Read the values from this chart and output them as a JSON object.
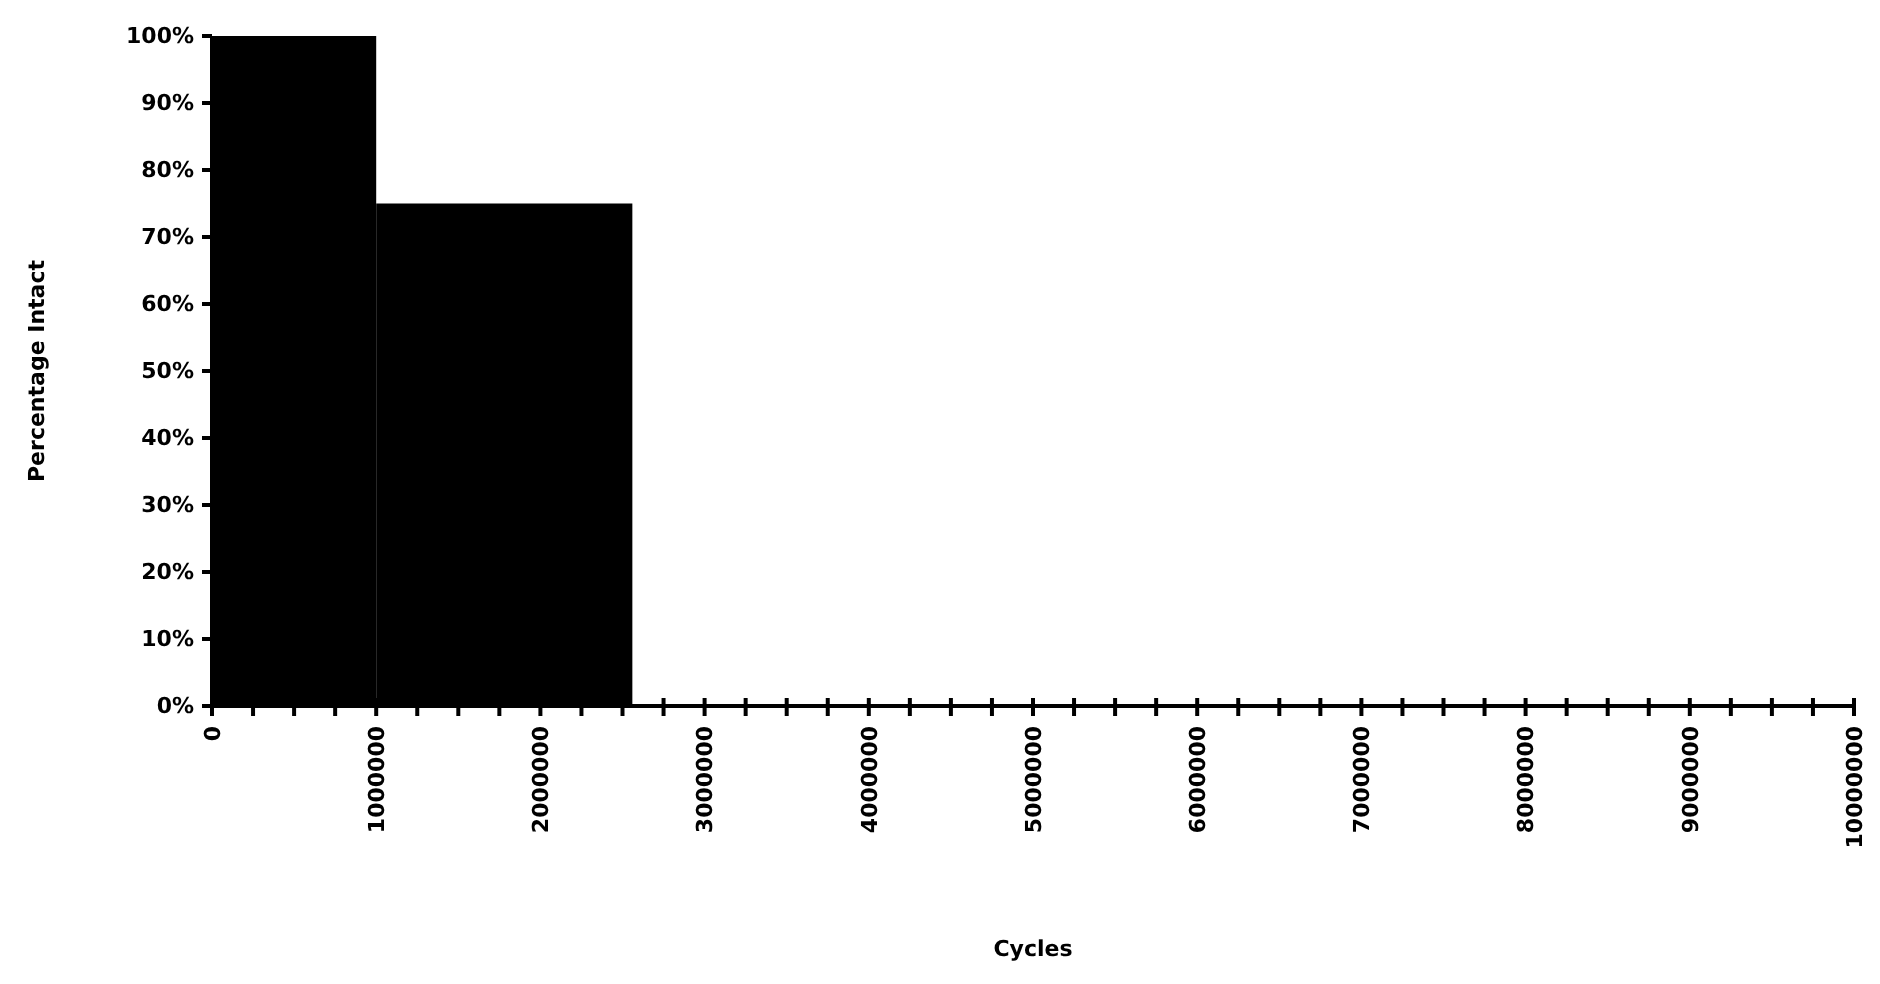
{
  "chart_data": {
    "type": "histogram",
    "xlabel": "Cycles",
    "ylabel": "Percentage Intact",
    "bins": [
      0,
      1000000,
      2560000
    ],
    "values": [
      100,
      75
    ],
    "color": "#000000",
    "xlim": [
      0,
      10000000
    ],
    "ylim": [
      0,
      100
    ],
    "xticks": [
      0,
      {
        "value": 250000,
        "label": null
      },
      {
        "value": 500000,
        "label": null
      },
      {
        "value": 750000,
        "label": null
      },
      1000000,
      {
        "value": 1250000,
        "label": null
      },
      {
        "value": 1500000,
        "label": null
      },
      {
        "value": 1750000,
        "label": null
      },
      2000000,
      {
        "value": 2250000,
        "label": null
      },
      {
        "value": 2500000,
        "label": null
      },
      {
        "value": 2750000,
        "label": null
      },
      3000000,
      {
        "value": 3250000,
        "label": null
      },
      {
        "value": 3500000,
        "label": null
      },
      {
        "value": 3750000,
        "label": null
      },
      4000000,
      {
        "value": 4250000,
        "label": null
      },
      {
        "value": 4500000,
        "label": null
      },
      {
        "value": 4750000,
        "label": null
      },
      5000000,
      {
        "value": 5250000,
        "label": null
      },
      {
        "value": 5500000,
        "label": null
      },
      {
        "value": 5750000,
        "label": null
      },
      6000000,
      {
        "value": 6250000,
        "label": null
      },
      {
        "value": 6500000,
        "label": null
      },
      {
        "value": 6750000,
        "label": null
      },
      7000000,
      {
        "value": 7250000,
        "label": null
      },
      {
        "value": 7500000,
        "label": null
      },
      {
        "value": 7750000,
        "label": null
      },
      8000000,
      {
        "value": 8250000,
        "label": null
      },
      {
        "value": 8500000,
        "label": null
      },
      {
        "value": 8750000,
        "label": null
      },
      9000000,
      {
        "value": 9250000,
        "label": null
      },
      {
        "value": 9500000,
        "label": null
      },
      {
        "value": 9750000,
        "label": null
      },
      10000000
    ],
    "yticks": [
      {
        "value": 0,
        "label": "0%"
      },
      {
        "value": 10,
        "label": "10%"
      },
      {
        "value": 20,
        "label": "20%"
      },
      {
        "value": 30,
        "label": "30%"
      },
      {
        "value": 40,
        "label": "40%"
      },
      {
        "value": 50,
        "label": "50%"
      },
      {
        "value": 60,
        "label": "60%"
      },
      {
        "value": 70,
        "label": "70%"
      },
      {
        "value": 80,
        "label": "80%"
      },
      {
        "value": 90,
        "label": "90%"
      },
      {
        "value": 100,
        "label": "100%"
      }
    ]
  }
}
